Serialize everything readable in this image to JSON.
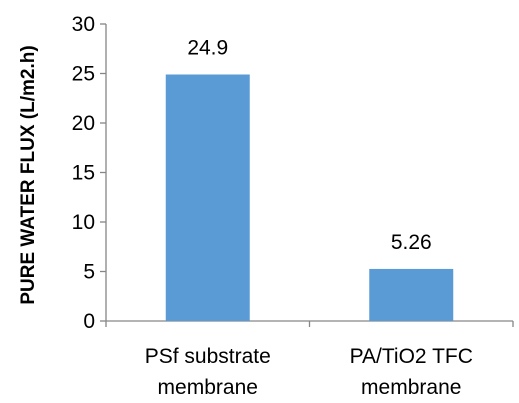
{
  "chart_data": {
    "type": "bar",
    "categories": [
      [
        "PSf substrate",
        "membrane"
      ],
      [
        "PA/TiO2 TFC",
        "membrane"
      ]
    ],
    "values": [
      24.9,
      5.26
    ],
    "data_labels": [
      "24.9",
      "5.26"
    ],
    "title": "",
    "xlabel": "",
    "ylabel": "PURE WATER FLUX (L/m2.h)",
    "ylim": [
      0,
      30
    ],
    "yticks": [
      0,
      5,
      10,
      15,
      20,
      25,
      30
    ],
    "grid": false,
    "legend": "none",
    "bar_color": "#5B9BD5",
    "axis_color": "#868686",
    "text_color": "#000000"
  }
}
